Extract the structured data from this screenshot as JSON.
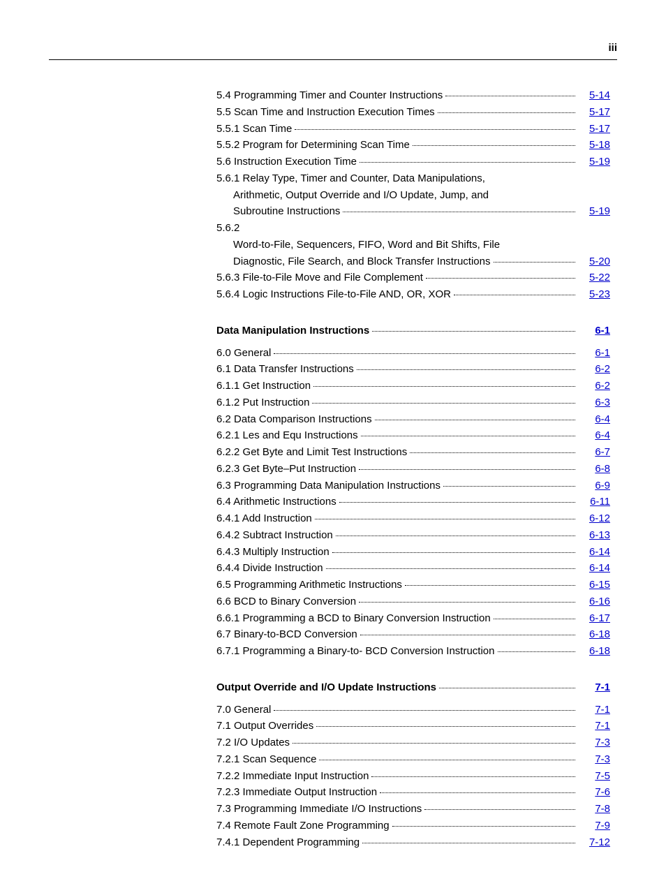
{
  "page_number_label": "iii",
  "entries": [
    {
      "text": "5.4 Programming Timer and Counter Instructions",
      "page": " 5-14",
      "type": "normal"
    },
    {
      "text": "5.5 Scan Time and Instruction Execution Times",
      "page": " 5-17",
      "type": "normal"
    },
    {
      "text": "5.5.1 Scan Time",
      "page": " 5-17",
      "type": "normal"
    },
    {
      "text": "5.5.2 Program for Determining Scan Time",
      "page": " 5-18",
      "type": "normal"
    },
    {
      "text": "5.6 Instruction Execution Time",
      "page": " 5-19",
      "type": "normal"
    },
    {
      "text": "5.6.1 Relay Type, Timer and Counter, Data Manipulations,",
      "page": "",
      "type": "wrap-first"
    },
    {
      "text": "Arithmetic, Output Override and I/O Update, Jump, and",
      "page": "",
      "type": "wrap"
    },
    {
      "text": "Subroutine Instructions",
      "page": " 5-19",
      "type": "wrap-end"
    },
    {
      "text": "5.6.2",
      "page": "",
      "type": "wrap-first"
    },
    {
      "text": "Word-to-File, Sequencers, FIFO, Word and Bit Shifts, File",
      "page": "",
      "type": "wrap"
    },
    {
      "text": "Diagnostic, File Search, and Block Transfer Instructions",
      "page": " 5-20",
      "type": "wrap-end"
    },
    {
      "text": "5.6.3 File-to-File Move and File Complement",
      "page": " 5-22",
      "type": "normal"
    },
    {
      "text": "5.6.4 Logic Instructions File-to-File AND, OR, XOR",
      "page": " 5-23",
      "type": "normal"
    },
    {
      "type": "gap"
    },
    {
      "text": "Data Manipulation Instructions",
      "page": " 6-1",
      "type": "heading"
    },
    {
      "type": "gap-small"
    },
    {
      "text": "6.0 General",
      "page": " 6-1",
      "type": "normal"
    },
    {
      "text": "6.1 Data Transfer Instructions",
      "page": " 6-2",
      "type": "normal"
    },
    {
      "text": "6.1.1 Get Instruction",
      "page": " 6-2",
      "type": "normal"
    },
    {
      "text": "6.1.2 Put Instruction",
      "page": " 6-3",
      "type": "normal"
    },
    {
      "text": "6.2 Data Comparison Instructions",
      "page": " 6-4",
      "type": "normal"
    },
    {
      "text": "6.2.1 Les and Equ Instructions",
      "page": " 6-4",
      "type": "normal"
    },
    {
      "text": "6.2.2 Get Byte and Limit Test Instructions",
      "page": " 6-7",
      "type": "normal"
    },
    {
      "text": "6.2.3 Get Byte–Put Instruction",
      "page": " 6-8",
      "type": "normal"
    },
    {
      "text": "6.3 Programming Data Manipulation Instructions",
      "page": " 6-9",
      "type": "normal"
    },
    {
      "text": "6.4 Arithmetic Instructions",
      "page": " 6-11",
      "type": "normal"
    },
    {
      "text": "6.4.1 Add Instruction",
      "page": " 6-12",
      "type": "normal"
    },
    {
      "text": "6.4.2 Subtract Instruction",
      "page": " 6-13",
      "type": "normal"
    },
    {
      "text": "6.4.3 Multiply Instruction",
      "page": " 6-14",
      "type": "normal"
    },
    {
      "text": "6.4.4 Divide Instruction",
      "page": " 6-14",
      "type": "normal"
    },
    {
      "text": "6.5 Programming Arithmetic Instructions",
      "page": " 6-15",
      "type": "normal"
    },
    {
      "text": "6.6 BCD to Binary Conversion",
      "page": " 6-16",
      "type": "normal"
    },
    {
      "text": "6.6.1 Programming a BCD to Binary Conversion Instruction",
      "page": " 6-17",
      "type": "normal"
    },
    {
      "text": "6.7 Binary-to-BCD Conversion",
      "page": " 6-18",
      "type": "normal"
    },
    {
      "text": "6.7.1 Programming a Binary-to- BCD Conversion Instruction",
      "page": " 6-18",
      "type": "normal"
    },
    {
      "type": "gap"
    },
    {
      "text": "Output Override and I/O Update Instructions",
      "page": " 7-1",
      "type": "heading"
    },
    {
      "type": "gap-small"
    },
    {
      "text": "7.0 General",
      "page": " 7-1",
      "type": "normal"
    },
    {
      "text": "7.1 Output Overrides",
      "page": " 7-1",
      "type": "normal"
    },
    {
      "text": "7.2 I/O Updates",
      "page": " 7-3",
      "type": "normal"
    },
    {
      "text": "7.2.1 Scan Sequence",
      "page": " 7-3",
      "type": "normal"
    },
    {
      "text": "7.2.2 Immediate Input Instruction",
      "page": " 7-5",
      "type": "normal"
    },
    {
      "text": "7.2.3 Immediate Output Instruction",
      "page": " 7-6",
      "type": "normal"
    },
    {
      "text": "7.3 Programming Immediate I/O Instructions",
      "page": " 7-8",
      "type": "normal"
    },
    {
      "text": "7.4 Remote Fault Zone Programming",
      "page": " 7-9",
      "type": "normal"
    },
    {
      "text": "7.4.1 Dependent Programming",
      "page": " 7-12",
      "type": "normal"
    }
  ]
}
